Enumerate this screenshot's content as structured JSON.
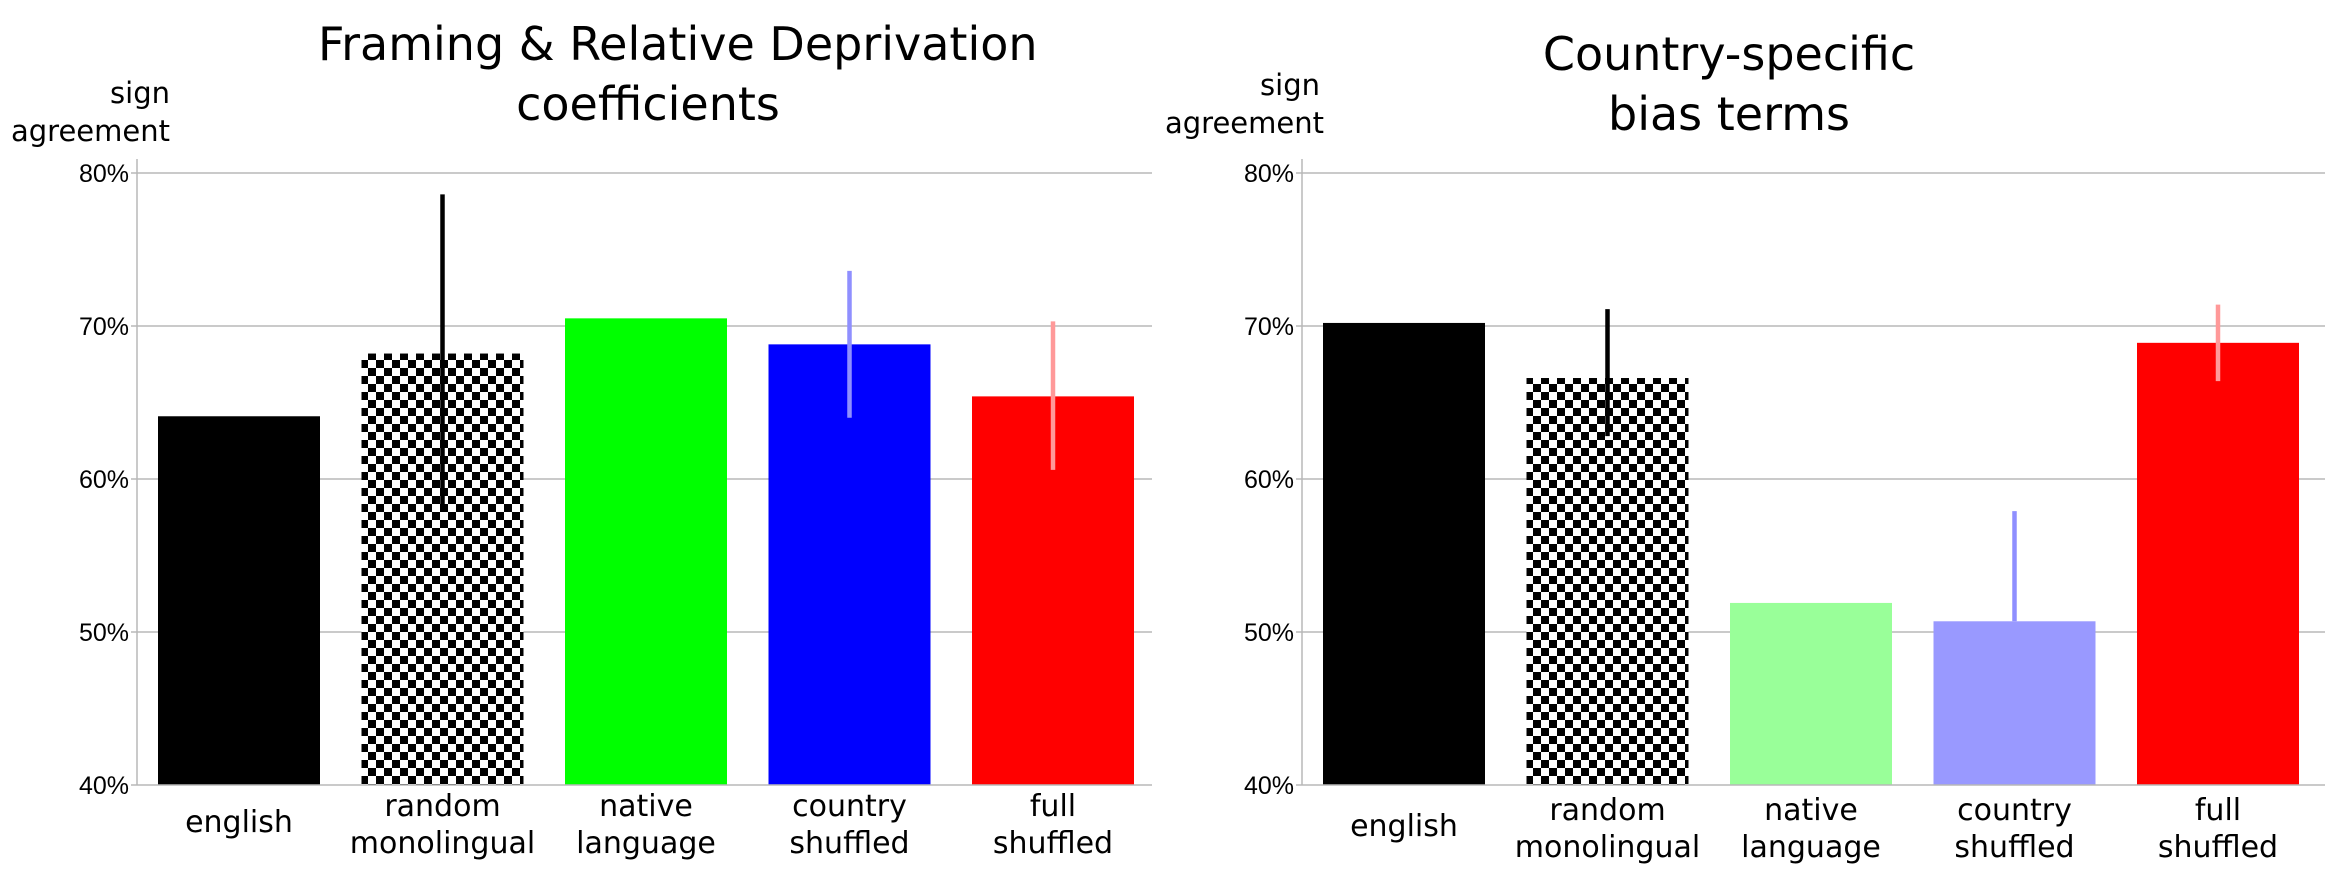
{
  "colors": {
    "black": "#000000",
    "green": "#00ff00",
    "blue": "#0000ff",
    "red": "#ff0000",
    "light_green": "#99ff99",
    "light_blue": "#9999ff",
    "err_black": "#000000",
    "err_light_blue": "#8f8fff",
    "err_light_red": "#ff9999",
    "grid": "#b8b8b8"
  },
  "chart_data": [
    {
      "type": "bar",
      "title": [
        "Framing & Relative Deprivation",
        "coefficients"
      ],
      "ylabel": [
        "sign",
        "agreement"
      ],
      "ylim": [
        40,
        80
      ],
      "yticks": [
        "40%",
        "50%",
        "60%",
        "70%",
        "80%"
      ],
      "grid": true,
      "categories": [
        [
          "english"
        ],
        [
          "random",
          "monolingual"
        ],
        [
          "native",
          "language"
        ],
        [
          "country",
          "shuffled"
        ],
        [
          "full",
          "shuffled"
        ]
      ],
      "values": [
        64.1,
        68.2,
        70.5,
        68.8,
        65.4
      ],
      "error_ranges": [
        null,
        [
          58.0,
          78.6
        ],
        null,
        [
          64.0,
          73.6
        ],
        [
          60.6,
          70.3
        ]
      ],
      "fills": [
        "black",
        "checker",
        "green",
        "blue",
        "red"
      ],
      "error_colors": [
        null,
        "err_black",
        null,
        "err_light_blue",
        "err_light_red"
      ]
    },
    {
      "type": "bar",
      "title": [
        "Country-specific",
        "bias terms"
      ],
      "ylabel": [
        "sign",
        "agreement"
      ],
      "ylim": [
        40,
        80
      ],
      "yticks": [
        "40%",
        "50%",
        "60%",
        "70%",
        "80%"
      ],
      "grid": true,
      "categories": [
        [
          "english"
        ],
        [
          "random",
          "monolingual"
        ],
        [
          "native",
          "language"
        ],
        [
          "country",
          "shuffled"
        ],
        [
          "full",
          "shuffled"
        ]
      ],
      "values": [
        70.2,
        66.6,
        51.9,
        50.7,
        68.9
      ],
      "error_ranges": [
        null,
        [
          62.8,
          71.1
        ],
        null,
        [
          50.7,
          57.9
        ],
        [
          66.4,
          71.4
        ]
      ],
      "fills": [
        "black",
        "checker",
        "light_green",
        "light_blue",
        "red"
      ],
      "error_colors": [
        null,
        "err_black",
        null,
        "err_light_blue",
        "err_light_red"
      ]
    }
  ]
}
